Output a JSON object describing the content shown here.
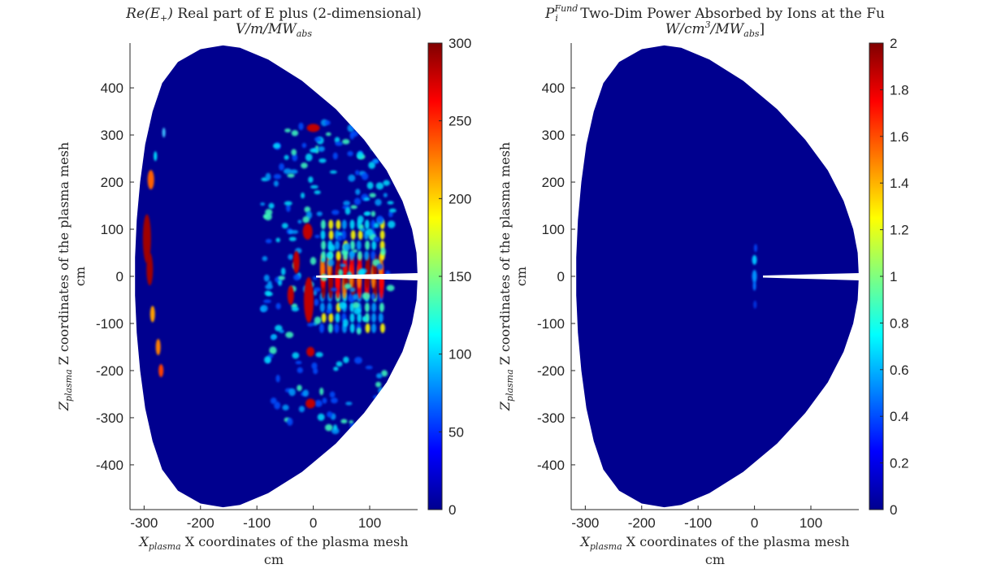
{
  "chart_data": [
    {
      "type": "heatmap",
      "title_math": "Re(E",
      "title_math_sub": "+",
      "title_math_close": ")",
      "title_text": "Real part of E plus (2-dimensional)",
      "subtitle_math": "V/m/MW",
      "subtitle_sub": "abs",
      "xlabel_var": "X",
      "xlabel_sub": "plasma",
      "xlabel_text": "X coordinates of the plasma mesh",
      "xlabel_unit": "cm",
      "ylabel_var": "Z",
      "ylabel_sub": "plasma",
      "ylabel_text": "Z coordinates of the plasma mesh",
      "ylabel_unit": "cm",
      "xlim": [
        -325,
        185
      ],
      "ylim": [
        -495,
        495
      ],
      "xticks": [
        "-300",
        "-200",
        "-100",
        "0",
        "100"
      ],
      "xtick_values": [
        -300,
        -200,
        -100,
        0,
        100
      ],
      "yticks": [
        "400",
        "300",
        "200",
        "100",
        "0",
        "-100",
        "-200",
        "-300",
        "-400"
      ],
      "ytick_values": [
        400,
        300,
        200,
        100,
        0,
        -100,
        -200,
        -300,
        -400
      ],
      "colormap": "jet",
      "clim": [
        0,
        300
      ],
      "colorbar_ticks": [
        "300",
        "250",
        "200",
        "150",
        "100",
        "50",
        "0"
      ],
      "colorbar_tick_values": [
        300,
        250,
        200,
        150,
        100,
        50,
        0
      ]
    },
    {
      "type": "heatmap",
      "title_math": "P",
      "title_math_sub": "i",
      "title_math_sup": "Fund",
      "title_text": "Two-Dim Power Absorbed by Ions at the Fu",
      "subtitle_math": "W/cm",
      "subtitle_sup": "3",
      "subtitle_math2": "/MW",
      "subtitle_sub": "abs",
      "subtitle_tail": "]",
      "xlabel_var": "X",
      "xlabel_sub": "plasma",
      "xlabel_text": "X coordinates of the plasma mesh",
      "xlabel_unit": "cm",
      "ylabel_var": "Z",
      "ylabel_sub": "plasma",
      "ylabel_text": "Z coordinates of the plasma mesh",
      "ylabel_unit": "cm",
      "xlim": [
        -325,
        185
      ],
      "ylim": [
        -495,
        495
      ],
      "xticks": [
        "-300",
        "-200",
        "-100",
        "0",
        "100"
      ],
      "xtick_values": [
        -300,
        -200,
        -100,
        0,
        100
      ],
      "yticks": [
        "400",
        "300",
        "200",
        "100",
        "0",
        "-100",
        "-200",
        "-300",
        "-400"
      ],
      "ytick_values": [
        400,
        300,
        200,
        100,
        0,
        -100,
        -200,
        -300,
        -400
      ],
      "colormap": "jet",
      "clim": [
        0,
        2
      ],
      "colorbar_ticks": [
        "2",
        "1.8",
        "1.6",
        "1.4",
        "1.2",
        "1",
        "0.8",
        "0.6",
        "0.4",
        "0.2",
        "0"
      ],
      "colorbar_tick_values": [
        2,
        1.8,
        1.6,
        1.4,
        1.2,
        1,
        0.8,
        0.6,
        0.4,
        0.2,
        0
      ]
    }
  ],
  "colors": {
    "background_field": "#00008f",
    "axis": "#262626",
    "hot": "#800000"
  }
}
